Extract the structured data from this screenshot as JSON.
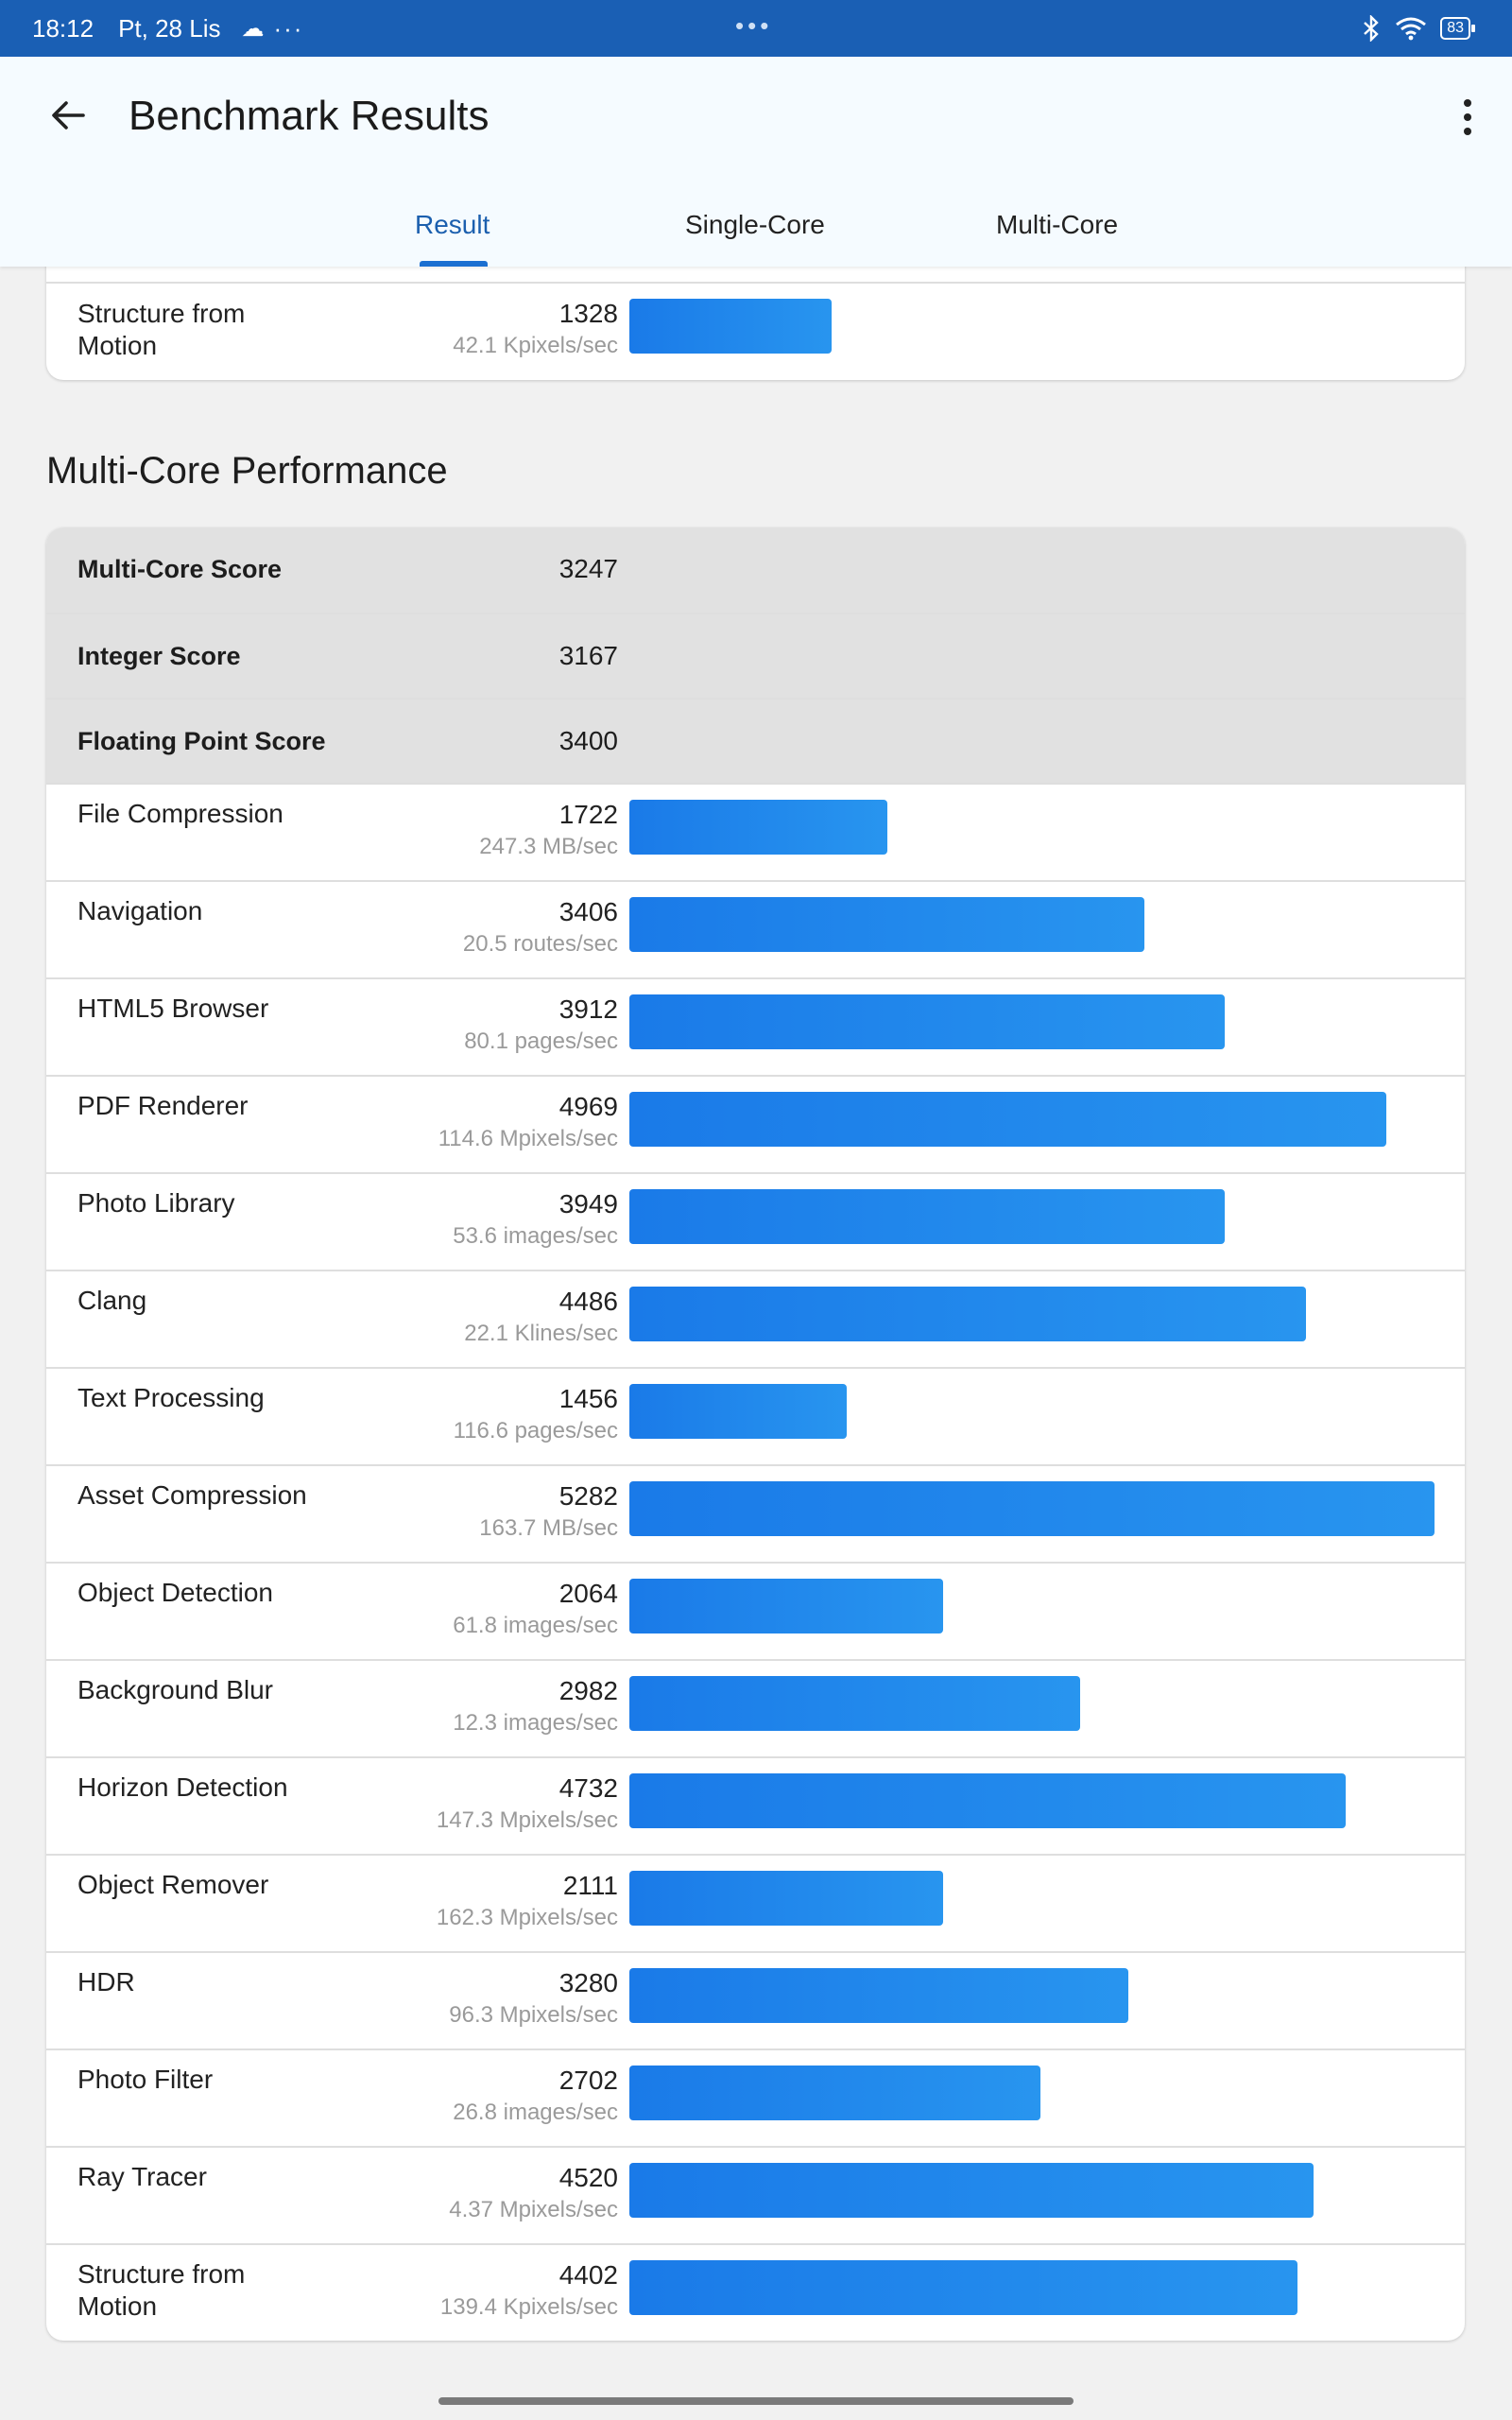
{
  "status": {
    "time": "18:12",
    "date": "Pt, 28 Lis",
    "more": "···",
    "center": "•••",
    "battery": "83"
  },
  "appbar": {
    "title": "Benchmark Results",
    "tabs": [
      {
        "label": "Result",
        "active": true
      },
      {
        "label": "Single-Core",
        "active": false
      },
      {
        "label": "Multi-Core",
        "active": false
      }
    ]
  },
  "single_core_tail": {
    "rows": [
      {
        "name": "Structure from Motion",
        "score": "1328",
        "unit": "42.1 Kpixels/sec",
        "fraction": 0.251
      }
    ]
  },
  "multi_core": {
    "section_title": "Multi-Core Performance",
    "summary": [
      {
        "name": "Multi-Core Score",
        "score": "3247"
      },
      {
        "name": "Integer Score",
        "score": "3167"
      },
      {
        "name": "Floating Point Score",
        "score": "3400"
      }
    ],
    "rows": [
      {
        "name": "File Compression",
        "score": "1722",
        "unit": "247.3 MB/sec",
        "fraction": 0.32
      },
      {
        "name": "Navigation",
        "score": "3406",
        "unit": "20.5 routes/sec",
        "fraction": 0.64
      },
      {
        "name": "HTML5 Browser",
        "score": "3912",
        "unit": "80.1 pages/sec",
        "fraction": 0.74
      },
      {
        "name": "PDF Renderer",
        "score": "4969",
        "unit": "114.6 Mpixels/sec",
        "fraction": 0.94
      },
      {
        "name": "Photo Library",
        "score": "3949",
        "unit": "53.6 images/sec",
        "fraction": 0.74
      },
      {
        "name": "Clang",
        "score": "4486",
        "unit": "22.1 Klines/sec",
        "fraction": 0.84
      },
      {
        "name": "Text Processing",
        "score": "1456",
        "unit": "116.6 pages/sec",
        "fraction": 0.27
      },
      {
        "name": "Asset Compression",
        "score": "5282",
        "unit": "163.7 MB/sec",
        "fraction": 1.0
      },
      {
        "name": "Object Detection",
        "score": "2064",
        "unit": "61.8 images/sec",
        "fraction": 0.39
      },
      {
        "name": "Background Blur",
        "score": "2982",
        "unit": "12.3 images/sec",
        "fraction": 0.56
      },
      {
        "name": "Horizon Detection",
        "score": "4732",
        "unit": "147.3 Mpixels/sec",
        "fraction": 0.89
      },
      {
        "name": "Object Remover",
        "score": "2111",
        "unit": "162.3 Mpixels/sec",
        "fraction": 0.39
      },
      {
        "name": "HDR",
        "score": "3280",
        "unit": "96.3 Mpixels/sec",
        "fraction": 0.62
      },
      {
        "name": "Photo Filter",
        "score": "2702",
        "unit": "26.8 images/sec",
        "fraction": 0.51
      },
      {
        "name": "Ray Tracer",
        "score": "4520",
        "unit": "4.37 Mpixels/sec",
        "fraction": 0.85
      },
      {
        "name": "Structure from Motion",
        "score": "4402",
        "unit": "139.4 Kpixels/sec",
        "fraction": 0.83
      }
    ]
  }
}
